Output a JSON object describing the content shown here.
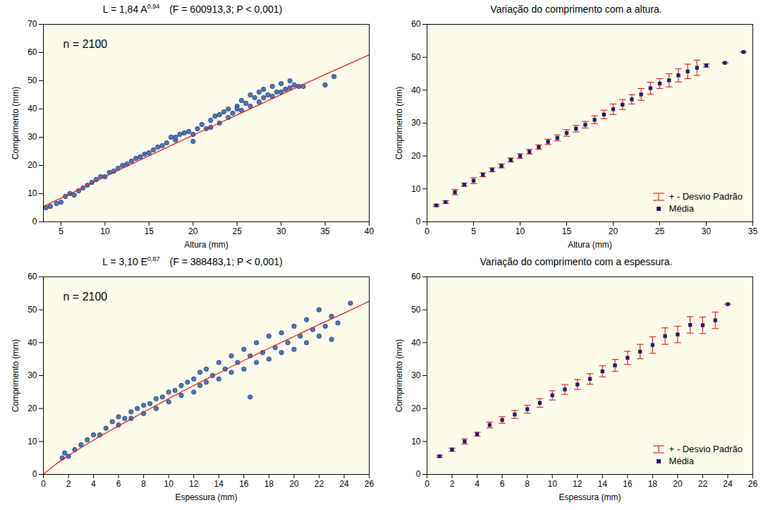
{
  "chart_data": [
    {
      "type": "scatter",
      "title": "L = 1,84 A",
      "title_superscript": "0,94",
      "subtitle": "(F = 600913,3; P < 0,001)",
      "x_label": "Altura (mm)",
      "y_label": "Comprimento (mm)",
      "xlim": [
        3,
        40
      ],
      "ylim": [
        0,
        70
      ],
      "xticks": [
        5,
        10,
        15,
        20,
        25,
        30,
        35,
        40
      ],
      "yticks": [
        0,
        10,
        20,
        30,
        40,
        50,
        60,
        70
      ],
      "annotations": [
        "n = 2100"
      ],
      "series": [
        {
          "type": "scatter",
          "color": "#4a78b8",
          "marker": "circle",
          "x": [
            3.3,
            3.8,
            4.5,
            5,
            5.5,
            6,
            6.5,
            7,
            7.5,
            8,
            8.5,
            9,
            9.5,
            10,
            10.5,
            11,
            11.5,
            12,
            12.5,
            13,
            13.5,
            14,
            14.5,
            15,
            15.5,
            16,
            16.5,
            17,
            17.5,
            18,
            18.5,
            19,
            19.5,
            20,
            20.5,
            21,
            21.5,
            22,
            22.5,
            23,
            23,
            23.5,
            24,
            24,
            24.5,
            25,
            25.5,
            25.5,
            26,
            26.5,
            26.5,
            27,
            27.5,
            27.5,
            28,
            28,
            28.5,
            29,
            29,
            29.5,
            30,
            30,
            30.5,
            31,
            31,
            31.5,
            32,
            32.5,
            35,
            36,
            20,
            25,
            22,
            18
          ],
          "values": [
            5,
            5.5,
            6.5,
            7,
            9,
            10,
            9.5,
            11,
            12,
            13,
            14,
            15,
            16,
            16,
            17.5,
            18,
            19,
            20,
            20.5,
            21.5,
            22.5,
            23,
            24,
            24.5,
            25.5,
            26.5,
            27,
            28,
            30,
            29,
            31,
            31.5,
            32,
            31,
            33,
            34.5,
            33,
            36,
            37.5,
            38,
            35,
            39,
            40,
            37,
            38.5,
            41,
            43,
            39.5,
            42,
            45,
            41,
            44,
            46,
            42.5,
            47,
            44,
            45,
            48,
            44.5,
            46,
            49,
            46,
            47,
            50,
            47.5,
            48.5,
            48,
            48,
            48.5,
            51.5,
            28.5,
            40,
            33.5,
            30
          ]
        },
        {
          "type": "line",
          "color": "#e0201c",
          "line_style": "solid",
          "x": [
            3,
            5,
            10,
            15,
            20,
            25,
            30,
            35,
            40
          ],
          "values": [
            5.5,
            8.4,
            16,
            23.4,
            30.7,
            37.9,
            45.1,
            52.2,
            59.2
          ]
        }
      ]
    },
    {
      "type": "errorbar",
      "title": "Variação do comprimento com a altura.",
      "x_label": "Altura (mm)",
      "y_label": "Comprimento (mm)",
      "xlim": [
        0,
        35
      ],
      "ylim": [
        0,
        60
      ],
      "xticks": [
        0,
        5,
        10,
        15,
        20,
        25,
        30,
        35
      ],
      "yticks": [
        0,
        10,
        20,
        30,
        40,
        50,
        60
      ],
      "legend": "lower right",
      "x": [
        1,
        2,
        3,
        4,
        5,
        6,
        7,
        8,
        9,
        10,
        11,
        12,
        13,
        14,
        15,
        16,
        17,
        18,
        19,
        20,
        21,
        22,
        23,
        24,
        25,
        26,
        27,
        28,
        29,
        30,
        32,
        34
      ],
      "series": [
        {
          "name": "Média",
          "color": "#1c1c70",
          "marker": "square",
          "values": [
            5,
            6,
            9,
            11.3,
            12.5,
            14.3,
            15.8,
            17,
            18.8,
            20,
            21.3,
            22.7,
            24.3,
            25.5,
            27,
            28.3,
            29.5,
            31,
            32.6,
            34.2,
            35.6,
            37.2,
            38.7,
            40.6,
            42,
            43,
            44.5,
            45.7,
            46.8,
            47.5,
            48.3,
            51.6
          ]
        }
      ],
      "error_bars": {
        "name": "+ - Desvio Padrão",
        "color": "#e3261f",
        "values": [
          0.3,
          0.4,
          0.8,
          0.5,
          0.9,
          0.6,
          0.6,
          0.6,
          0.6,
          0.7,
          0.7,
          0.7,
          0.8,
          0.9,
          1,
          1,
          1,
          1.2,
          1.3,
          1.6,
          1.5,
          1.4,
          1.8,
          1.8,
          1.5,
          2,
          2,
          2.2,
          2.3,
          0.5,
          0,
          0
        ]
      }
    },
    {
      "type": "scatter",
      "title": "L = 3,10 E",
      "title_superscript": "0,87",
      "subtitle": "(F = 388483,1; P < 0,001)",
      "x_label": "Espessura (mm)",
      "y_label": "Comprimento (mm)",
      "xlim": [
        0,
        26
      ],
      "ylim": [
        0,
        60
      ],
      "xticks": [
        0,
        2,
        4,
        6,
        8,
        10,
        12,
        14,
        16,
        18,
        20,
        22,
        24,
        26
      ],
      "yticks": [
        0,
        10,
        20,
        30,
        40,
        50,
        60
      ],
      "annotations": [
        "n = 2100"
      ],
      "series": [
        {
          "type": "scatter",
          "color": "#4a78b8",
          "marker": "circle",
          "x": [
            1.5,
            1.7,
            2,
            2.5,
            3,
            3.5,
            4,
            4.5,
            5,
            5.5,
            6,
            6,
            6.5,
            7,
            7,
            7.5,
            8,
            8,
            8.5,
            9,
            9,
            9.5,
            10,
            10,
            10.5,
            11,
            11,
            11.5,
            12,
            12,
            12.5,
            12.5,
            13,
            13,
            13.5,
            14,
            14,
            14.5,
            15,
            15,
            15.5,
            16,
            16,
            16.5,
            16.5,
            17,
            17,
            17.5,
            18,
            18,
            18.5,
            19,
            19,
            19.5,
            20,
            20,
            20.5,
            21,
            21,
            21.5,
            22,
            22,
            22.5,
            23,
            23,
            23.5,
            24.5
          ],
          "values": [
            5,
            6.5,
            5.5,
            7.5,
            9,
            10.5,
            12,
            12,
            14,
            16,
            15,
            17.5,
            17,
            19,
            17,
            20,
            21,
            18.5,
            21.5,
            23,
            20,
            23.5,
            25,
            22,
            25.5,
            27,
            24,
            28,
            29,
            25,
            31,
            27,
            32,
            28,
            30,
            34,
            29,
            32,
            36,
            31,
            34,
            38,
            32,
            36,
            23.5,
            40,
            34,
            37,
            42,
            35,
            38.5,
            43,
            37,
            40,
            45,
            38,
            42,
            47,
            40,
            44,
            50,
            42,
            45,
            48,
            41,
            46,
            52
          ]
        },
        {
          "type": "line",
          "color": "#e0201c",
          "line_style": "solid",
          "x": [
            0,
            1,
            2,
            4,
            6,
            8,
            10,
            12,
            14,
            16,
            18,
            20,
            22,
            24,
            26
          ],
          "values": [
            0,
            3.1,
            5.7,
            10.4,
            14.7,
            18.9,
            23,
            27,
            30.8,
            34.6,
            38.3,
            41.9,
            45.5,
            49,
            52.6
          ]
        }
      ]
    },
    {
      "type": "errorbar",
      "title": "Variação do comprimento com a espessura.",
      "x_label": "Espessura (mm)",
      "y_label": "Comprimento (mm)",
      "xlim": [
        0,
        26
      ],
      "ylim": [
        0,
        60
      ],
      "xticks": [
        0,
        2,
        4,
        6,
        8,
        10,
        12,
        14,
        16,
        18,
        20,
        22,
        24,
        26
      ],
      "yticks": [
        0,
        10,
        20,
        30,
        40,
        50,
        60
      ],
      "legend": "lower right",
      "x": [
        1,
        2,
        3,
        4,
        5,
        6,
        7,
        8,
        9,
        10,
        11,
        12,
        13,
        14,
        15,
        16,
        17,
        18,
        19,
        20,
        21,
        22,
        23,
        24
      ],
      "series": [
        {
          "name": "Média",
          "color": "#1c1c70",
          "marker": "square",
          "values": [
            5.5,
            7.5,
            10,
            12.2,
            15,
            16.5,
            18.2,
            19.8,
            21.7,
            24,
            25.8,
            27.3,
            29,
            31.3,
            33.1,
            35.4,
            37.3,
            39.3,
            42,
            42.5,
            45.4,
            45.3,
            46.8,
            51.7
          ]
        }
      ],
      "error_bars": {
        "name": "+ - Desvio Padrão",
        "color": "#e3261f",
        "values": [
          0.3,
          0.5,
          0.8,
          0.6,
          0.9,
          1,
          1.2,
          1.2,
          1.3,
          1.4,
          1.5,
          1.5,
          1.6,
          1.7,
          1.8,
          2,
          2.2,
          2.5,
          2.5,
          2.5,
          2.5,
          2.5,
          2.5,
          0
        ]
      }
    }
  ]
}
